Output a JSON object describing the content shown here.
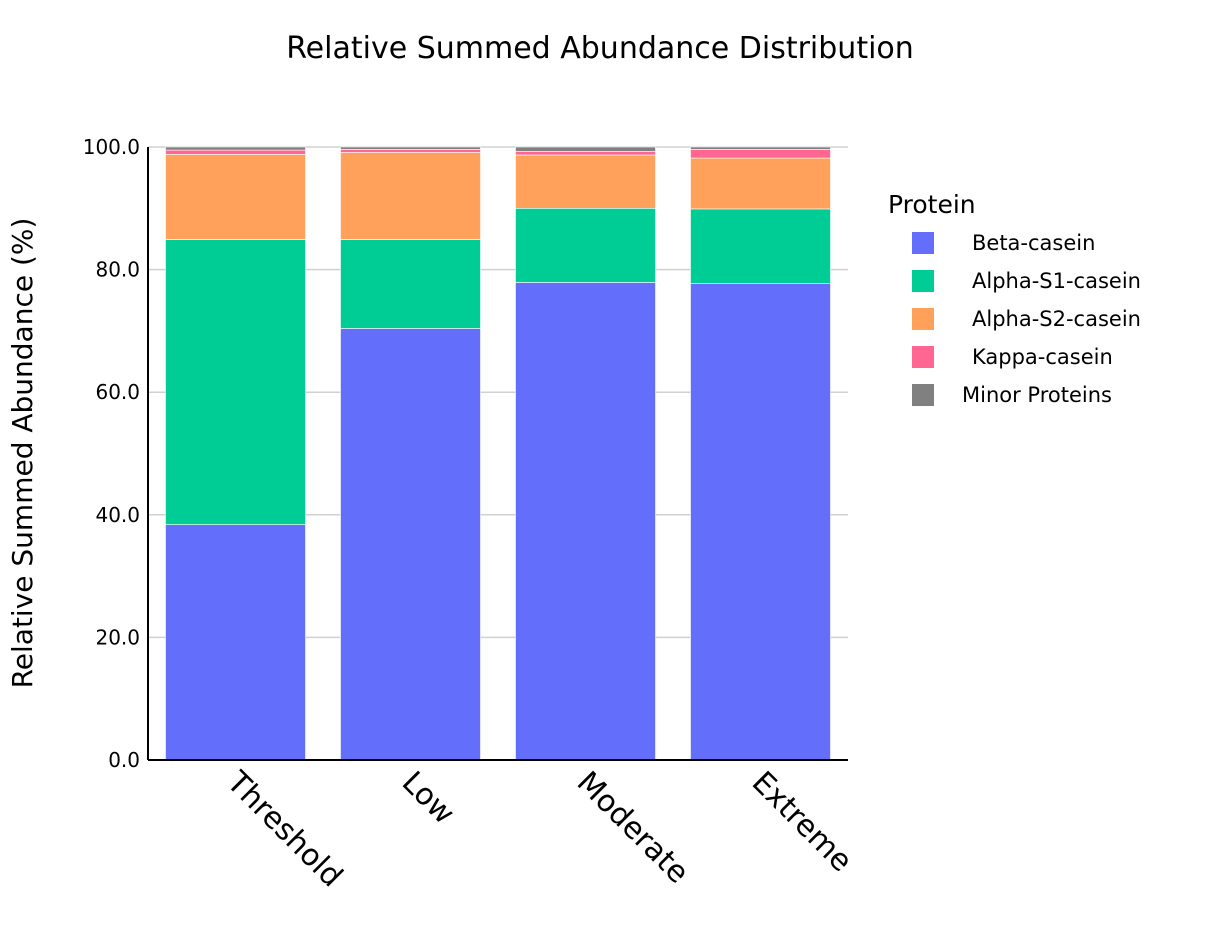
{
  "chart_data": {
    "type": "bar",
    "stacked": true,
    "title": "Relative Summed Abundance Distribution",
    "xlabel": "",
    "ylabel": "Relative Summed Abundance (%)",
    "ylim": [
      0,
      100
    ],
    "yticks": [
      "0.0",
      "20.0",
      "40.0",
      "60.0",
      "80.0",
      "100.0"
    ],
    "grid": true,
    "legend_position": "right",
    "categories": [
      "Threshold",
      "Low",
      "Moderate",
      "Extreme"
    ],
    "legend_title": "Protein",
    "series": [
      {
        "name": "Beta-casein",
        "color": "#636efa",
        "values": [
          38.4,
          70.4,
          77.9,
          77.7
        ]
      },
      {
        "name": "Alpha-S1-casein",
        "color": "#00cc96",
        "values": [
          46.5,
          14.5,
          12.1,
          12.2
        ]
      },
      {
        "name": "Alpha-S2-casein",
        "color": "#ffa15a",
        "values": [
          13.9,
          14.2,
          8.7,
          8.3
        ]
      },
      {
        "name": "Kappa-casein",
        "color": "#ff6692",
        "values": [
          0.7,
          0.5,
          0.6,
          1.4
        ]
      },
      {
        "name": "Minor Proteins",
        "color": "#808080",
        "values": [
          0.5,
          0.4,
          0.7,
          0.4
        ]
      }
    ]
  }
}
